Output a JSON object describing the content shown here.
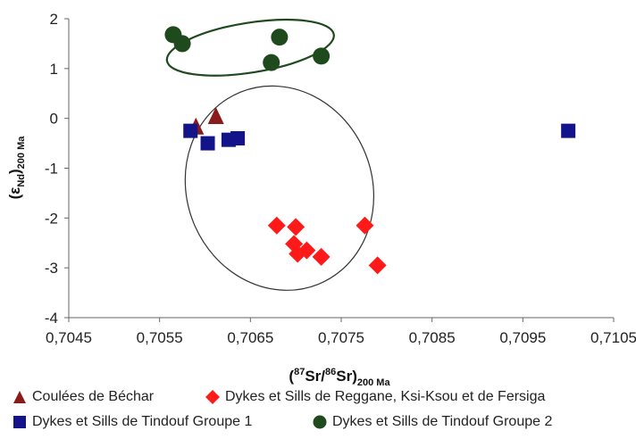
{
  "chart_data": {
    "type": "scatter",
    "title": "",
    "xlabel": {
      "pre": "(",
      "sup1": "87",
      "mid": "Sr/",
      "sup2": "86",
      "post": "Sr)",
      "sub": "200 Ma"
    },
    "ylabel": {
      "pre": "(ε",
      "sub1": "Nd",
      "post": ")",
      "sub2": "200 Ma"
    },
    "xlim": [
      0.7045,
      0.7105
    ],
    "ylim": [
      -4,
      2
    ],
    "xticks": [
      0.7045,
      0.7055,
      0.7065,
      0.7075,
      0.7085,
      0.7095,
      0.7105
    ],
    "xtick_labels": [
      "0,7045",
      "0,7055",
      "0,7065",
      "0,7075",
      "0,7085",
      "0,7095",
      "0,7105"
    ],
    "yticks": [
      2,
      1,
      0,
      -1,
      -2,
      -3,
      -4
    ],
    "ytick_labels": [
      "2",
      "1",
      "0",
      "-1",
      "-2",
      "-3",
      "-4"
    ],
    "grid": false,
    "legend_position": "bottom",
    "series": [
      {
        "name": "Coulées de Béchar",
        "marker": "triangle",
        "color": "#8b1a1a",
        "points": [
          [
            0.7059,
            -0.18
          ],
          [
            0.70612,
            0.03
          ]
        ]
      },
      {
        "name": "Dykes et Sills de Reggane, Ksi-Ksou et de Fersiga",
        "marker": "diamond",
        "color": "#ff1a1a",
        "points": [
          [
            0.70679,
            -2.15
          ],
          [
            0.70698,
            -2.52
          ],
          [
            0.707,
            -2.18
          ],
          [
            0.70702,
            -2.72
          ],
          [
            0.70712,
            -2.65
          ],
          [
            0.70728,
            -2.78
          ],
          [
            0.70776,
            -2.15
          ],
          [
            0.7079,
            -2.95
          ]
        ]
      },
      {
        "name": "Dykes et Sills de Tindouf Groupe 1",
        "marker": "square",
        "color": "#14148a",
        "points": [
          [
            0.70584,
            -0.25
          ],
          [
            0.70603,
            -0.5
          ],
          [
            0.70626,
            -0.43
          ],
          [
            0.70636,
            -0.4
          ],
          [
            0.71,
            -0.25
          ]
        ]
      },
      {
        "name": "Dykes et Sills de Tindouf Groupe 2",
        "marker": "circle",
        "color": "#1e4a1e",
        "points": [
          [
            0.70565,
            1.68
          ],
          [
            0.70575,
            1.5
          ],
          [
            0.70673,
            1.12
          ],
          [
            0.70682,
            1.63
          ],
          [
            0.70728,
            1.25
          ]
        ]
      }
    ],
    "groupings": [
      {
        "name": "group-2-ellipse",
        "cx": 0.7065,
        "cy": 1.42,
        "rx": 0.00093,
        "ry": 0.5,
        "angle_deg": -9,
        "color": "#1e4a1e"
      },
      {
        "name": "main-cluster-ellipse",
        "cx": 0.70682,
        "cy": -1.4,
        "rx": 0.00102,
        "ry": 2.08,
        "angle_deg": -22,
        "color": "#333333"
      }
    ]
  }
}
